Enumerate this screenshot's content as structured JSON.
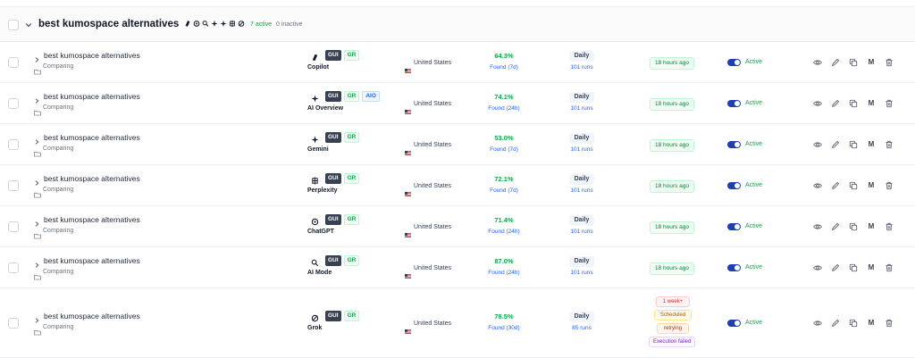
{
  "group": {
    "title": "best kumospace alternatives",
    "active_count": "7 active",
    "inactive_count": "0 inactive",
    "engine_icons": [
      "copilot-icon",
      "chatgpt-icon",
      "ai-mode-icon",
      "sparkle-icon",
      "sparkle-icon",
      "perplexity-icon",
      "grok-icon"
    ]
  },
  "rows": [
    {
      "keyword": "best kumospace alternatives",
      "stage": "Comparing",
      "engine": "Copilot",
      "engine_icon": "copilot-icon",
      "badge_gui": "GUI",
      "badge_gr": "GR",
      "country": "United States",
      "pct": "64.3%",
      "found": "Found (7d)",
      "freq": "Daily",
      "runs": "101 runs",
      "last_run": "18 hours ago",
      "status": "Active"
    },
    {
      "keyword": "best kumospace alternatives",
      "stage": "Comparing",
      "engine": "AI Overview",
      "engine_icon": "sparkle-icon",
      "badge_gui": "GUI",
      "badge_gr": "GR",
      "badge_aio": "AIO",
      "country": "United States",
      "pct": "74.1%",
      "found": "Found (24h)",
      "freq": "Daily",
      "runs": "101 runs",
      "last_run": "18 hours ago",
      "status": "Active"
    },
    {
      "keyword": "best kumospace alternatives",
      "stage": "Comparing",
      "engine": "Gemini",
      "engine_icon": "sparkle-icon",
      "badge_gui": "GUI",
      "badge_gr": "GR",
      "country": "United States",
      "pct": "53.0%",
      "found": "Found (7d)",
      "freq": "Daily",
      "runs": "101 runs",
      "last_run": "18 hours ago",
      "status": "Active"
    },
    {
      "keyword": "best kumospace alternatives",
      "stage": "Comparing",
      "engine": "Perplexity",
      "engine_icon": "perplexity-icon",
      "badge_gui": "GUI",
      "badge_gr": "GR",
      "country": "United States",
      "pct": "72.1%",
      "found": "Found (7d)",
      "freq": "Daily",
      "runs": "101 runs",
      "last_run": "18 hours ago",
      "status": "Active"
    },
    {
      "keyword": "best kumospace alternatives",
      "stage": "Comparing",
      "engine": "ChatGPT",
      "engine_icon": "chatgpt-icon",
      "badge_gui": "GUI",
      "badge_gr": "GR",
      "country": "United States",
      "pct": "71.4%",
      "found": "Found (24h)",
      "freq": "Daily",
      "runs": "101 runs",
      "last_run": "18 hours ago",
      "status": "Active"
    },
    {
      "keyword": "best kumospace alternatives",
      "stage": "Comparing",
      "engine": "AI Mode",
      "engine_icon": "ai-mode-icon",
      "badge_gui": "GUI",
      "badge_gr": "GR",
      "country": "United States",
      "pct": "87.0%",
      "found": "Found (24h)",
      "freq": "Daily",
      "runs": "101 runs",
      "last_run": "18 hours ago",
      "status": "Active"
    },
    {
      "keyword": "best kumospace alternatives",
      "stage": "Comparing",
      "engine": "Grok",
      "engine_icon": "grok-icon",
      "badge_gui": "GUI",
      "badge_gr": "GR",
      "country": "United States",
      "pct": "78.5%",
      "found": "Found (30d)",
      "freq": "Daily",
      "runs": "85 runs",
      "statuses": [
        "1 week+",
        "Scheduled",
        "retrying",
        "Execution failed"
      ],
      "status": "Active"
    }
  ],
  "actions": {
    "m_label": "M"
  },
  "colors": {
    "accent": "#1e40af",
    "success": "#16a34a",
    "link": "#2563eb"
  }
}
